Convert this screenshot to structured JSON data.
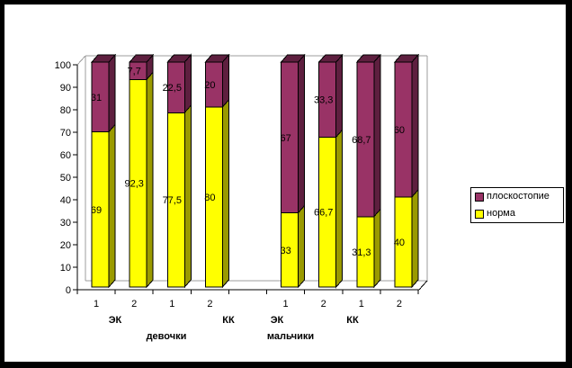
{
  "chart_data": {
    "type": "bar",
    "stacked": true,
    "units": "percent",
    "title": "",
    "xlabel": "",
    "ylabel": "",
    "ylim": [
      0,
      100
    ],
    "ytick_step": 10,
    "grid": false,
    "legend_position": "right",
    "n_slots": 9,
    "categories": [
      "1",
      "2",
      "1",
      "2",
      "1",
      "2",
      "1",
      "2"
    ],
    "category_slots": [
      0,
      1,
      2,
      3,
      5,
      6,
      7,
      8
    ],
    "group_labels": [
      "ЭК",
      "КК",
      "ЭК",
      "КК"
    ],
    "family_labels": [
      "девочки",
      "мальчики"
    ],
    "series": [
      {
        "name": "норма",
        "color": "#FFFF00",
        "shade": "#9A9A00",
        "values": [
          69,
          92.3,
          77.5,
          80,
          33,
          66.7,
          31.3,
          40
        ],
        "labels": [
          "69",
          "92,3",
          "77,5",
          "80",
          "33",
          "66,7",
          "31,3",
          "40"
        ]
      },
      {
        "name": "плоскостопие",
        "color": "#993366",
        "shade": "#5E1F3F",
        "values": [
          31,
          7.7,
          22.5,
          20,
          67,
          33.3,
          68.7,
          60
        ],
        "labels": [
          "31",
          "7,7",
          "22,5",
          "20",
          "67",
          "33,3",
          "68,7",
          "60"
        ]
      }
    ]
  },
  "legend": {
    "entries": [
      {
        "label": "плоскостопие",
        "color": "#993366"
      },
      {
        "label": "норма",
        "color": "#FFFF00"
      }
    ]
  },
  "colors": {
    "axis": "#000000",
    "wall": "#9C9C9C",
    "background": "#FFFFFF",
    "frame": "#000000"
  }
}
